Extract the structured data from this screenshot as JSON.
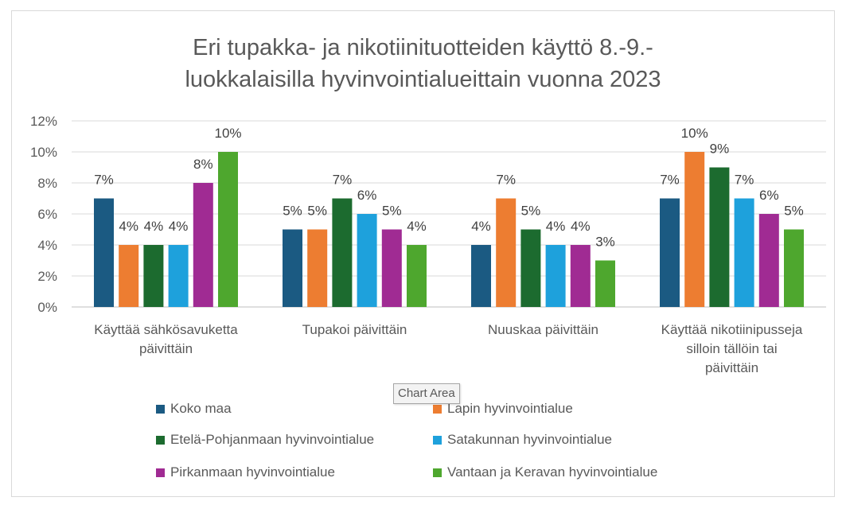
{
  "chart_data": {
    "type": "bar",
    "title_lines": [
      "Eri tupakka-  ja nikotiinituotteiden käyttö 8.-9.-",
      "luokkalaisilla hyvinvointialueittain vuonna 2023"
    ],
    "categories": [
      [
        "Käyttää sähkösavuketta",
        "päivittäin"
      ],
      [
        "Tupakoi päivittäin"
      ],
      [
        "Nuuskaa päivittäin"
      ],
      [
        "Käyttää nikotiinipusseja",
        "silloin tällöin tai",
        "päivittäin"
      ]
    ],
    "y_ticks": [
      "0%",
      "2%",
      "4%",
      "6%",
      "8%",
      "10%",
      "12%"
    ],
    "ylim": [
      0,
      12
    ],
    "value_suffix": "%",
    "grid": true,
    "legend_position": "bottom",
    "series": [
      {
        "name": "Koko maa",
        "color": "#1b5a82",
        "values": [
          7,
          5,
          4,
          7
        ]
      },
      {
        "name": "Lapin hyvinvointialue",
        "color": "#ed7d31",
        "values": [
          4,
          5,
          7,
          10
        ]
      },
      {
        "name": "Etelä-Pohjanmaan hyvinvointialue",
        "color": "#1c6b2f",
        "values": [
          4,
          7,
          5,
          9
        ]
      },
      {
        "name": "Satakunnan hyvinvointialue",
        "color": "#1ea1dc",
        "values": [
          4,
          6,
          4,
          7
        ]
      },
      {
        "name": "Pirkanmaan hyvinvointialue",
        "color": "#a02b93",
        "values": [
          8,
          5,
          4,
          6
        ]
      },
      {
        "name": "Vantaan ja Keravan hyvinvointialue",
        "color": "#4ea72e",
        "values": [
          10,
          4,
          3,
          5
        ]
      }
    ]
  },
  "tooltip": "Chart Area"
}
